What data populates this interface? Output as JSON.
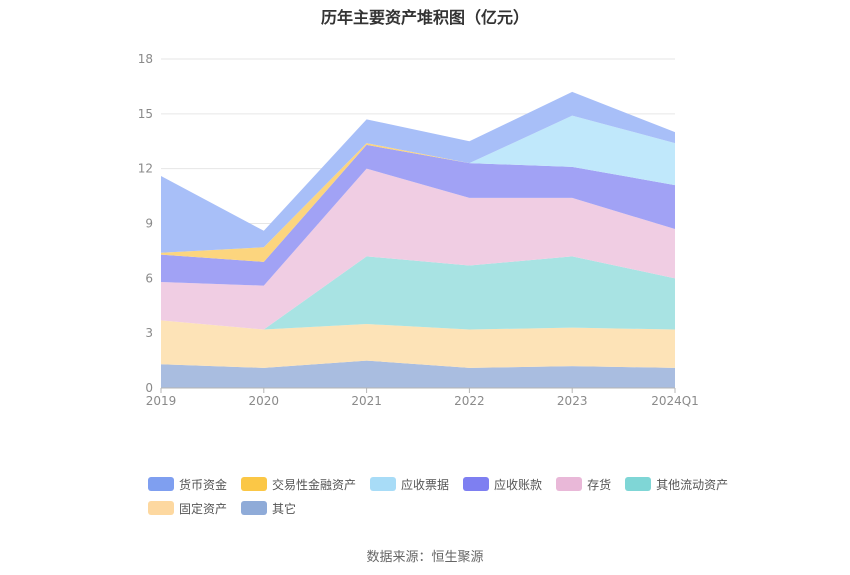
{
  "chart_data": {
    "type": "area",
    "stacked": true,
    "title": "历年主要资产堆积图（亿元）",
    "categories": [
      "2019",
      "2020",
      "2021",
      "2022",
      "2023",
      "2024Q1"
    ],
    "ylim": [
      0,
      18
    ],
    "yticks": [
      0,
      3,
      6,
      9,
      12,
      15,
      18
    ],
    "grid": true,
    "legend_position": "bottom",
    "series": [
      {
        "name": "其它",
        "color": "#a9bde0",
        "values": [
          1.3,
          1.1,
          1.5,
          1.1,
          1.2,
          1.1
        ]
      },
      {
        "name": "固定资产",
        "color": "#fde3b7",
        "values": [
          2.4,
          2.1,
          2.0,
          2.1,
          2.1,
          2.1
        ]
      },
      {
        "name": "其他流动资产",
        "color": "#a8e3e3",
        "values": [
          0.0,
          0.0,
          3.7,
          3.5,
          3.9,
          2.8
        ]
      },
      {
        "name": "存货",
        "color": "#f0cde3",
        "values": [
          2.1,
          2.4,
          4.8,
          3.7,
          3.2,
          2.7
        ]
      },
      {
        "name": "应收账款",
        "color": "#a1a2f5",
        "values": [
          1.5,
          1.3,
          1.3,
          1.9,
          1.7,
          2.4
        ]
      },
      {
        "name": "应收票据",
        "color": "#c0e8fb",
        "values": [
          0.0,
          0.0,
          0.0,
          0.0,
          2.8,
          2.3
        ]
      },
      {
        "name": "交易性金融资产",
        "color": "#fcd57e",
        "values": [
          0.1,
          0.8,
          0.1,
          0.0,
          0.0,
          0.0
        ]
      },
      {
        "name": "货币资金",
        "color": "#a8bff8",
        "values": [
          4.2,
          0.9,
          1.3,
          1.2,
          1.3,
          0.6
        ]
      }
    ]
  },
  "legend": [
    {
      "label": "货币资金",
      "color": "#7f9ff0"
    },
    {
      "label": "交易性金融资产",
      "color": "#fbc746"
    },
    {
      "label": "应收票据",
      "color": "#a8dcf7"
    },
    {
      "label": "应收账款",
      "color": "#7e7ff1"
    },
    {
      "label": "存货",
      "color": "#e9b8d8"
    },
    {
      "label": "其他流动资产",
      "color": "#7fd6d6"
    },
    {
      "label": "固定资产",
      "color": "#fdd8a0"
    },
    {
      "label": "其它",
      "color": "#8fabd8"
    }
  ],
  "source": "数据来源：恒生聚源"
}
